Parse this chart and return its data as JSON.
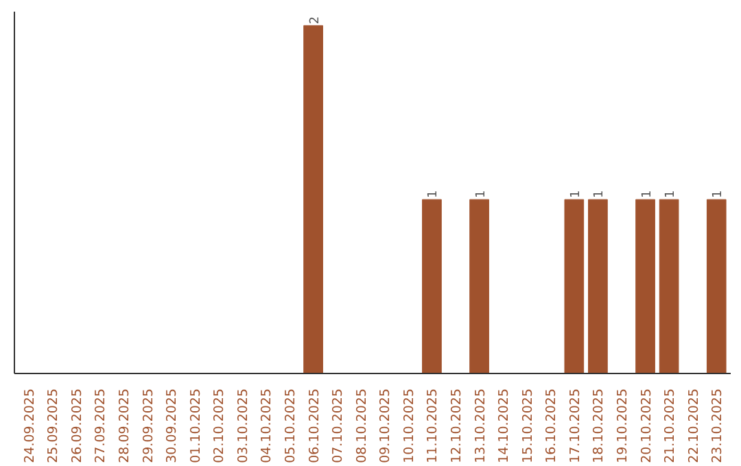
{
  "chart_data": {
    "type": "bar",
    "categories": [
      "24.09.2025",
      "25.09.2025",
      "26.09.2025",
      "27.09.2025",
      "28.09.2025",
      "29.09.2025",
      "30.09.2025",
      "01.10.2025",
      "02.10.2025",
      "03.10.2025",
      "04.10.2025",
      "05.10.2025",
      "06.10.2025",
      "07.10.2025",
      "08.10.2025",
      "09.10.2025",
      "10.10.2025",
      "11.10.2025",
      "12.10.2025",
      "13.10.2025",
      "14.10.2025",
      "15.10.2025",
      "16.10.2025",
      "17.10.2025",
      "18.10.2025",
      "19.10.2025",
      "20.10.2025",
      "21.10.2025",
      "22.10.2025",
      "23.10.2025"
    ],
    "values": [
      null,
      null,
      null,
      null,
      null,
      null,
      null,
      null,
      null,
      null,
      null,
      null,
      2,
      null,
      null,
      null,
      null,
      1,
      null,
      1,
      null,
      null,
      null,
      1,
      1,
      null,
      1,
      1,
      null,
      1
    ],
    "color": "#a0522d",
    "data_labels": true,
    "tick_labels": "x"
  }
}
